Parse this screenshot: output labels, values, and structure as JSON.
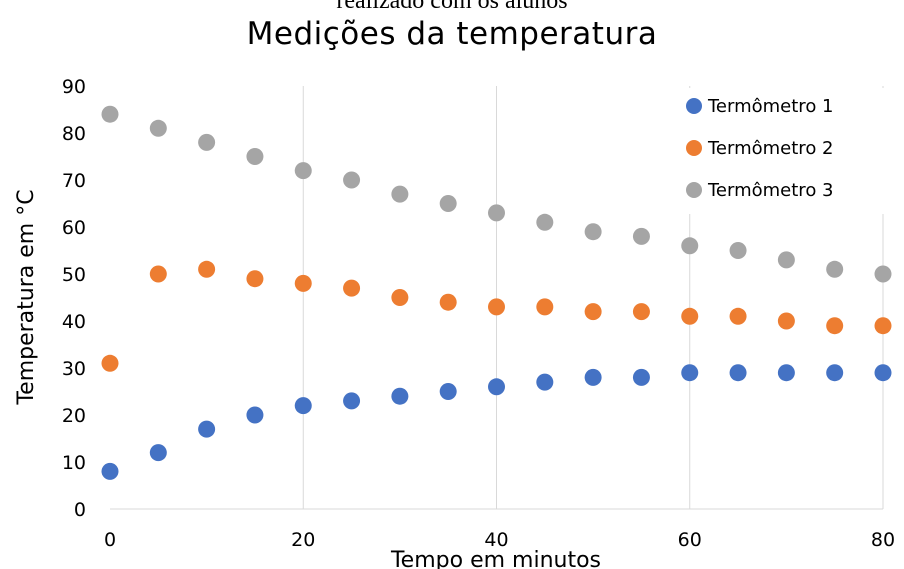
{
  "caption": "realizado com os alunos",
  "chart_data": {
    "type": "scatter",
    "title": "Medições da temperatura",
    "xlabel": "Tempo em minutos",
    "ylabel": "Temperatura em °C",
    "xlim": [
      0,
      80
    ],
    "ylim": [
      0,
      90
    ],
    "xticks": [
      0,
      20,
      40,
      60,
      80
    ],
    "yticks": [
      0,
      10,
      20,
      30,
      40,
      50,
      60,
      70,
      80,
      90
    ],
    "grid": "vertical",
    "legend": "top-right",
    "x": [
      0,
      5,
      10,
      15,
      20,
      25,
      30,
      35,
      40,
      45,
      50,
      55,
      60,
      65,
      70,
      75,
      80
    ],
    "series": [
      {
        "name": "Termômetro 1",
        "color": "#4472C4",
        "values": [
          8,
          12,
          17,
          20,
          22,
          23,
          24,
          25,
          26,
          27,
          28,
          28,
          29,
          29,
          29,
          29,
          29
        ]
      },
      {
        "name": "Termômetro 2",
        "color": "#ED7D31",
        "values": [
          31,
          50,
          51,
          49,
          48,
          47,
          45,
          44,
          43,
          43,
          42,
          42,
          41,
          41,
          40,
          39,
          39
        ]
      },
      {
        "name": "Termômetro 3",
        "color": "#A5A5A5",
        "values": [
          84,
          81,
          78,
          75,
          72,
          70,
          67,
          65,
          63,
          61,
          59,
          58,
          56,
          55,
          53,
          51,
          50
        ]
      }
    ]
  }
}
